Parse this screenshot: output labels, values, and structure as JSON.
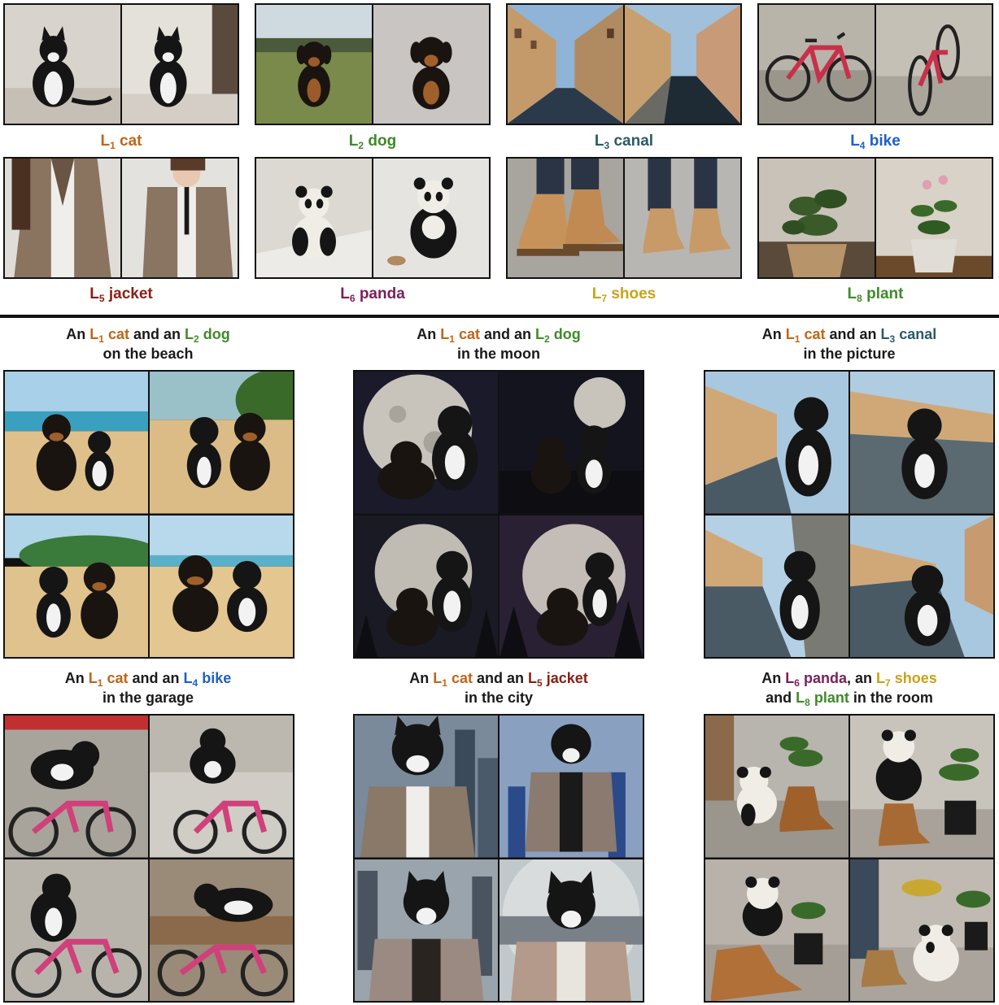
{
  "colors": {
    "cat": "#c0651a",
    "dog": "#3f8a2a",
    "canal": "#2a5a6a",
    "bike": "#1f5fc8",
    "jacket": "#8a1f12",
    "panda": "#7a1f5a",
    "shoes": "#c9a21a",
    "plant": "#3f8a2a",
    "text": "#1a1a1a"
  },
  "concepts": [
    {
      "key": "cat",
      "letter": "L",
      "sub": "1",
      "name": "cat",
      "icon": "cat-photo"
    },
    {
      "key": "dog",
      "letter": "L",
      "sub": "2",
      "name": "dog",
      "icon": "dog-photo"
    },
    {
      "key": "canal",
      "letter": "L",
      "sub": "3",
      "name": "canal",
      "icon": "canal-photo"
    },
    {
      "key": "bike",
      "letter": "L",
      "sub": "4",
      "name": "bike",
      "icon": "bike-photo"
    },
    {
      "key": "jacket",
      "letter": "L",
      "sub": "5",
      "name": "jacket",
      "icon": "jacket-photo"
    },
    {
      "key": "panda",
      "letter": "L",
      "sub": "6",
      "name": "panda",
      "icon": "panda-photo"
    },
    {
      "key": "shoes",
      "letter": "L",
      "sub": "7",
      "name": "shoes",
      "icon": "shoes-photo"
    },
    {
      "key": "plant",
      "letter": "L",
      "sub": "8",
      "name": "plant",
      "icon": "plant-photo"
    }
  ],
  "prompts": [
    {
      "line1": {
        "pre": "An ",
        "a_sub": "1",
        "a_name": "cat",
        "mid": " and an ",
        "b_sub": "2",
        "b_name": "dog"
      },
      "line2": "on the beach"
    },
    {
      "line1": {
        "pre": "An ",
        "a_sub": "1",
        "a_name": "cat",
        "mid": " and an ",
        "b_sub": "2",
        "b_name": "dog"
      },
      "line2": "in the moon"
    },
    {
      "line1": {
        "pre": "An ",
        "a_sub": "1",
        "a_name": "cat",
        "mid": " and an ",
        "b_sub": "3",
        "b_name": "canal"
      },
      "line2": "in the picture"
    },
    {
      "line1": {
        "pre": "An ",
        "a_sub": "1",
        "a_name": "cat",
        "mid": " and an ",
        "b_sub": "4",
        "b_name": "bike"
      },
      "line2": "in the garage"
    },
    {
      "line1": {
        "pre": "An ",
        "a_sub": "1",
        "a_name": "cat",
        "mid": " and an ",
        "b_sub": "5",
        "b_name": "jacket"
      },
      "line2": "in the city"
    },
    {
      "line1": {
        "pre": "An ",
        "a_sub": "6",
        "a_name": "panda",
        "mid": ", an ",
        "b_sub": "7",
        "b_name": "shoes"
      },
      "line2": {
        "pre": "and ",
        "c_sub": "8",
        "c_name": "plant",
        "post": " in the room"
      }
    }
  ],
  "letter": "L"
}
